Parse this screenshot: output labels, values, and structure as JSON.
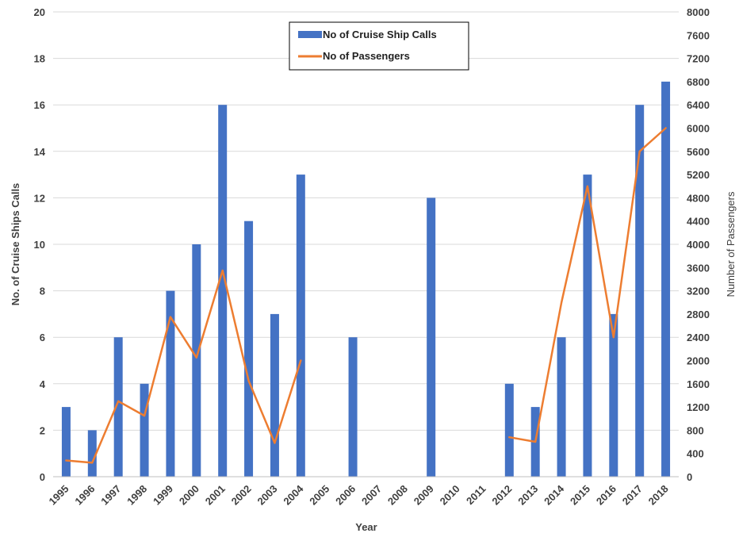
{
  "chart_data": {
    "type": "bar",
    "categories": [
      "1995",
      "1996",
      "1997",
      "1998",
      "1999",
      "2000",
      "2001",
      "2002",
      "2003",
      "2004",
      "2005",
      "2006",
      "2007",
      "2008",
      "2009",
      "2010",
      "2011",
      "2012",
      "2013",
      "2014",
      "2015",
      "2016",
      "2017",
      "2018"
    ],
    "series": [
      {
        "name": "No of Cruise Ship Calls",
        "type": "bar",
        "axis": "left",
        "color": "#4472C4",
        "values": [
          3,
          2,
          6,
          4,
          8,
          10,
          16,
          11,
          7,
          13,
          null,
          6,
          null,
          null,
          12,
          null,
          null,
          4,
          3,
          6,
          13,
          7,
          16,
          17
        ]
      },
      {
        "name": "No of Passengers",
        "type": "line",
        "axis": "right",
        "color": "#ED7D31",
        "values": [
          280,
          240,
          1300,
          1050,
          2750,
          2050,
          3550,
          1650,
          580,
          2000,
          null,
          null,
          null,
          null,
          null,
          null,
          null,
          680,
          600,
          3000,
          5000,
          2400,
          5600,
          6000
        ]
      }
    ],
    "xlabel": "Year",
    "ylabel": "No. of Cruise Ships Calls",
    "y2label": "Number of Passengers",
    "ylim": [
      0,
      20
    ],
    "y2lim": [
      0,
      8000
    ],
    "yticks": [
      "0",
      "2",
      "4",
      "6",
      "8",
      "10",
      "12",
      "14",
      "16",
      "18",
      "20"
    ],
    "y2ticks": [
      "0",
      "400",
      "800",
      "1200",
      "1600",
      "2000",
      "2400",
      "2800",
      "3200",
      "3600",
      "4000",
      "4400",
      "4800",
      "5200",
      "5600",
      "6000",
      "6400",
      "6800",
      "7200",
      "7600",
      "8000"
    ],
    "grid": true,
    "legend": "top-center"
  }
}
